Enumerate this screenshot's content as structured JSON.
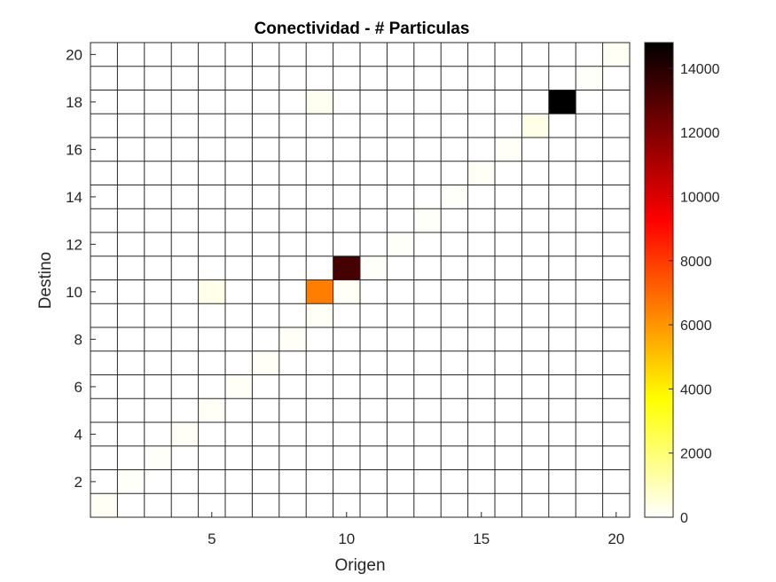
{
  "chart_data": {
    "type": "heatmap",
    "title": "Conectividad - # Particulas",
    "xlabel": "Origen",
    "ylabel": "Destino",
    "x_range": [
      1,
      20
    ],
    "y_range": [
      1,
      20
    ],
    "x_ticks": [
      5,
      10,
      15,
      20
    ],
    "y_ticks": [
      2,
      4,
      6,
      8,
      10,
      12,
      14,
      16,
      18,
      20
    ],
    "colormap": "hot (reversed)",
    "color_range": [
      0,
      14800
    ],
    "colorbar_ticks": [
      0,
      2000,
      4000,
      6000,
      8000,
      10000,
      12000,
      14000
    ],
    "grid": true,
    "background_value": 0,
    "cells": [
      {
        "x": 1,
        "y": 1,
        "value": 150
      },
      {
        "x": 2,
        "y": 2,
        "value": 80
      },
      {
        "x": 3,
        "y": 3,
        "value": 80
      },
      {
        "x": 4,
        "y": 4,
        "value": 120
      },
      {
        "x": 5,
        "y": 5,
        "value": 120
      },
      {
        "x": 5,
        "y": 10,
        "value": 300
      },
      {
        "x": 6,
        "y": 6,
        "value": 100
      },
      {
        "x": 7,
        "y": 7,
        "value": 120
      },
      {
        "x": 8,
        "y": 8,
        "value": 120
      },
      {
        "x": 9,
        "y": 9,
        "value": 100
      },
      {
        "x": 9,
        "y": 18,
        "value": 200
      },
      {
        "x": 9,
        "y": 10,
        "value": 6500
      },
      {
        "x": 10,
        "y": 10,
        "value": 100
      },
      {
        "x": 10,
        "y": 11,
        "value": 13300
      },
      {
        "x": 11,
        "y": 11,
        "value": 80
      },
      {
        "x": 12,
        "y": 12,
        "value": 80
      },
      {
        "x": 13,
        "y": 13,
        "value": 80
      },
      {
        "x": 14,
        "y": 14,
        "value": 80
      },
      {
        "x": 15,
        "y": 15,
        "value": 100
      },
      {
        "x": 16,
        "y": 16,
        "value": 100
      },
      {
        "x": 17,
        "y": 17,
        "value": 350
      },
      {
        "x": 18,
        "y": 18,
        "value": 14800
      },
      {
        "x": 19,
        "y": 19,
        "value": 80
      },
      {
        "x": 20,
        "y": 20,
        "value": 150
      }
    ]
  }
}
